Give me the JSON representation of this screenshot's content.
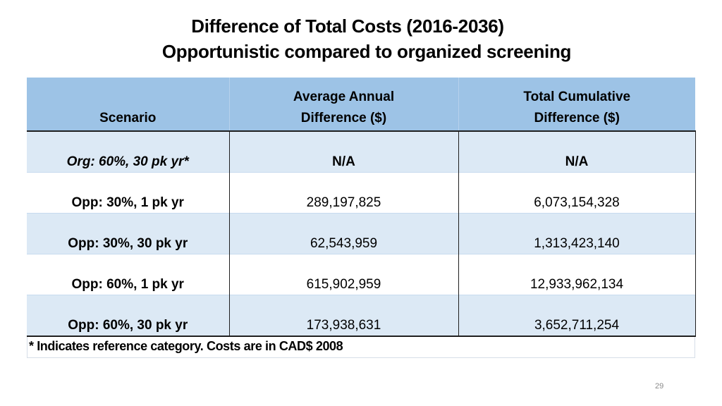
{
  "slide": {
    "title_line1": "Difference of Total Costs (2016-2036)",
    "title_line2": "Opportunistic compared to organized screening",
    "page_number": "29"
  },
  "table": {
    "headers": [
      "Scenario",
      "Average Annual Difference ($)",
      "Total Cumulative Difference ($)"
    ],
    "header_lines": {
      "col2_line1": "Average Annual",
      "col2_line2": "Difference ($)",
      "col3_line1": "Total Cumulative",
      "col3_line2": "Difference ($)"
    },
    "rows": [
      {
        "scenario": "Org: 60%, 30 pk yr*",
        "avg_annual": "N/A",
        "total_cumulative": "N/A"
      },
      {
        "scenario": "Opp: 30%, 1 pk yr",
        "avg_annual": "289,197,825",
        "total_cumulative": "6,073,154,328"
      },
      {
        "scenario": "Opp: 30%, 30 pk yr",
        "avg_annual": "62,543,959",
        "total_cumulative": "1,313,423,140"
      },
      {
        "scenario": "Opp: 60%, 1 pk yr",
        "avg_annual": "615,902,959",
        "total_cumulative": "12,933,962,134"
      },
      {
        "scenario": "Opp: 60%, 30 pk yr",
        "avg_annual": "173,938,631",
        "total_cumulative": "3,652,711,254"
      }
    ],
    "footnote": "* Indicates reference category. Costs are in CAD$ 2008"
  },
  "colors": {
    "header_bg": "#9dc3e6",
    "shaded_row_bg": "#dce9f5",
    "border": "#1f1f1f"
  }
}
